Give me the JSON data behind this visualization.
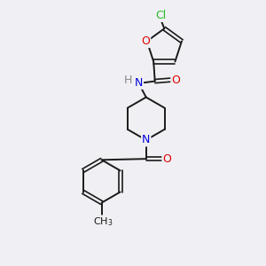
{
  "background_color": "#f0f0f4",
  "bond_color": "#1a1a1a",
  "atoms": {
    "Cl": {
      "color": "#22bb22",
      "fontsize": 9
    },
    "O": {
      "color": "#dd0000",
      "fontsize": 9
    },
    "N": {
      "color": "#0000dd",
      "fontsize": 9
    },
    "H": {
      "color": "#888888",
      "fontsize": 9
    }
  },
  "figsize": [
    3.0,
    3.0
  ],
  "dpi": 100
}
